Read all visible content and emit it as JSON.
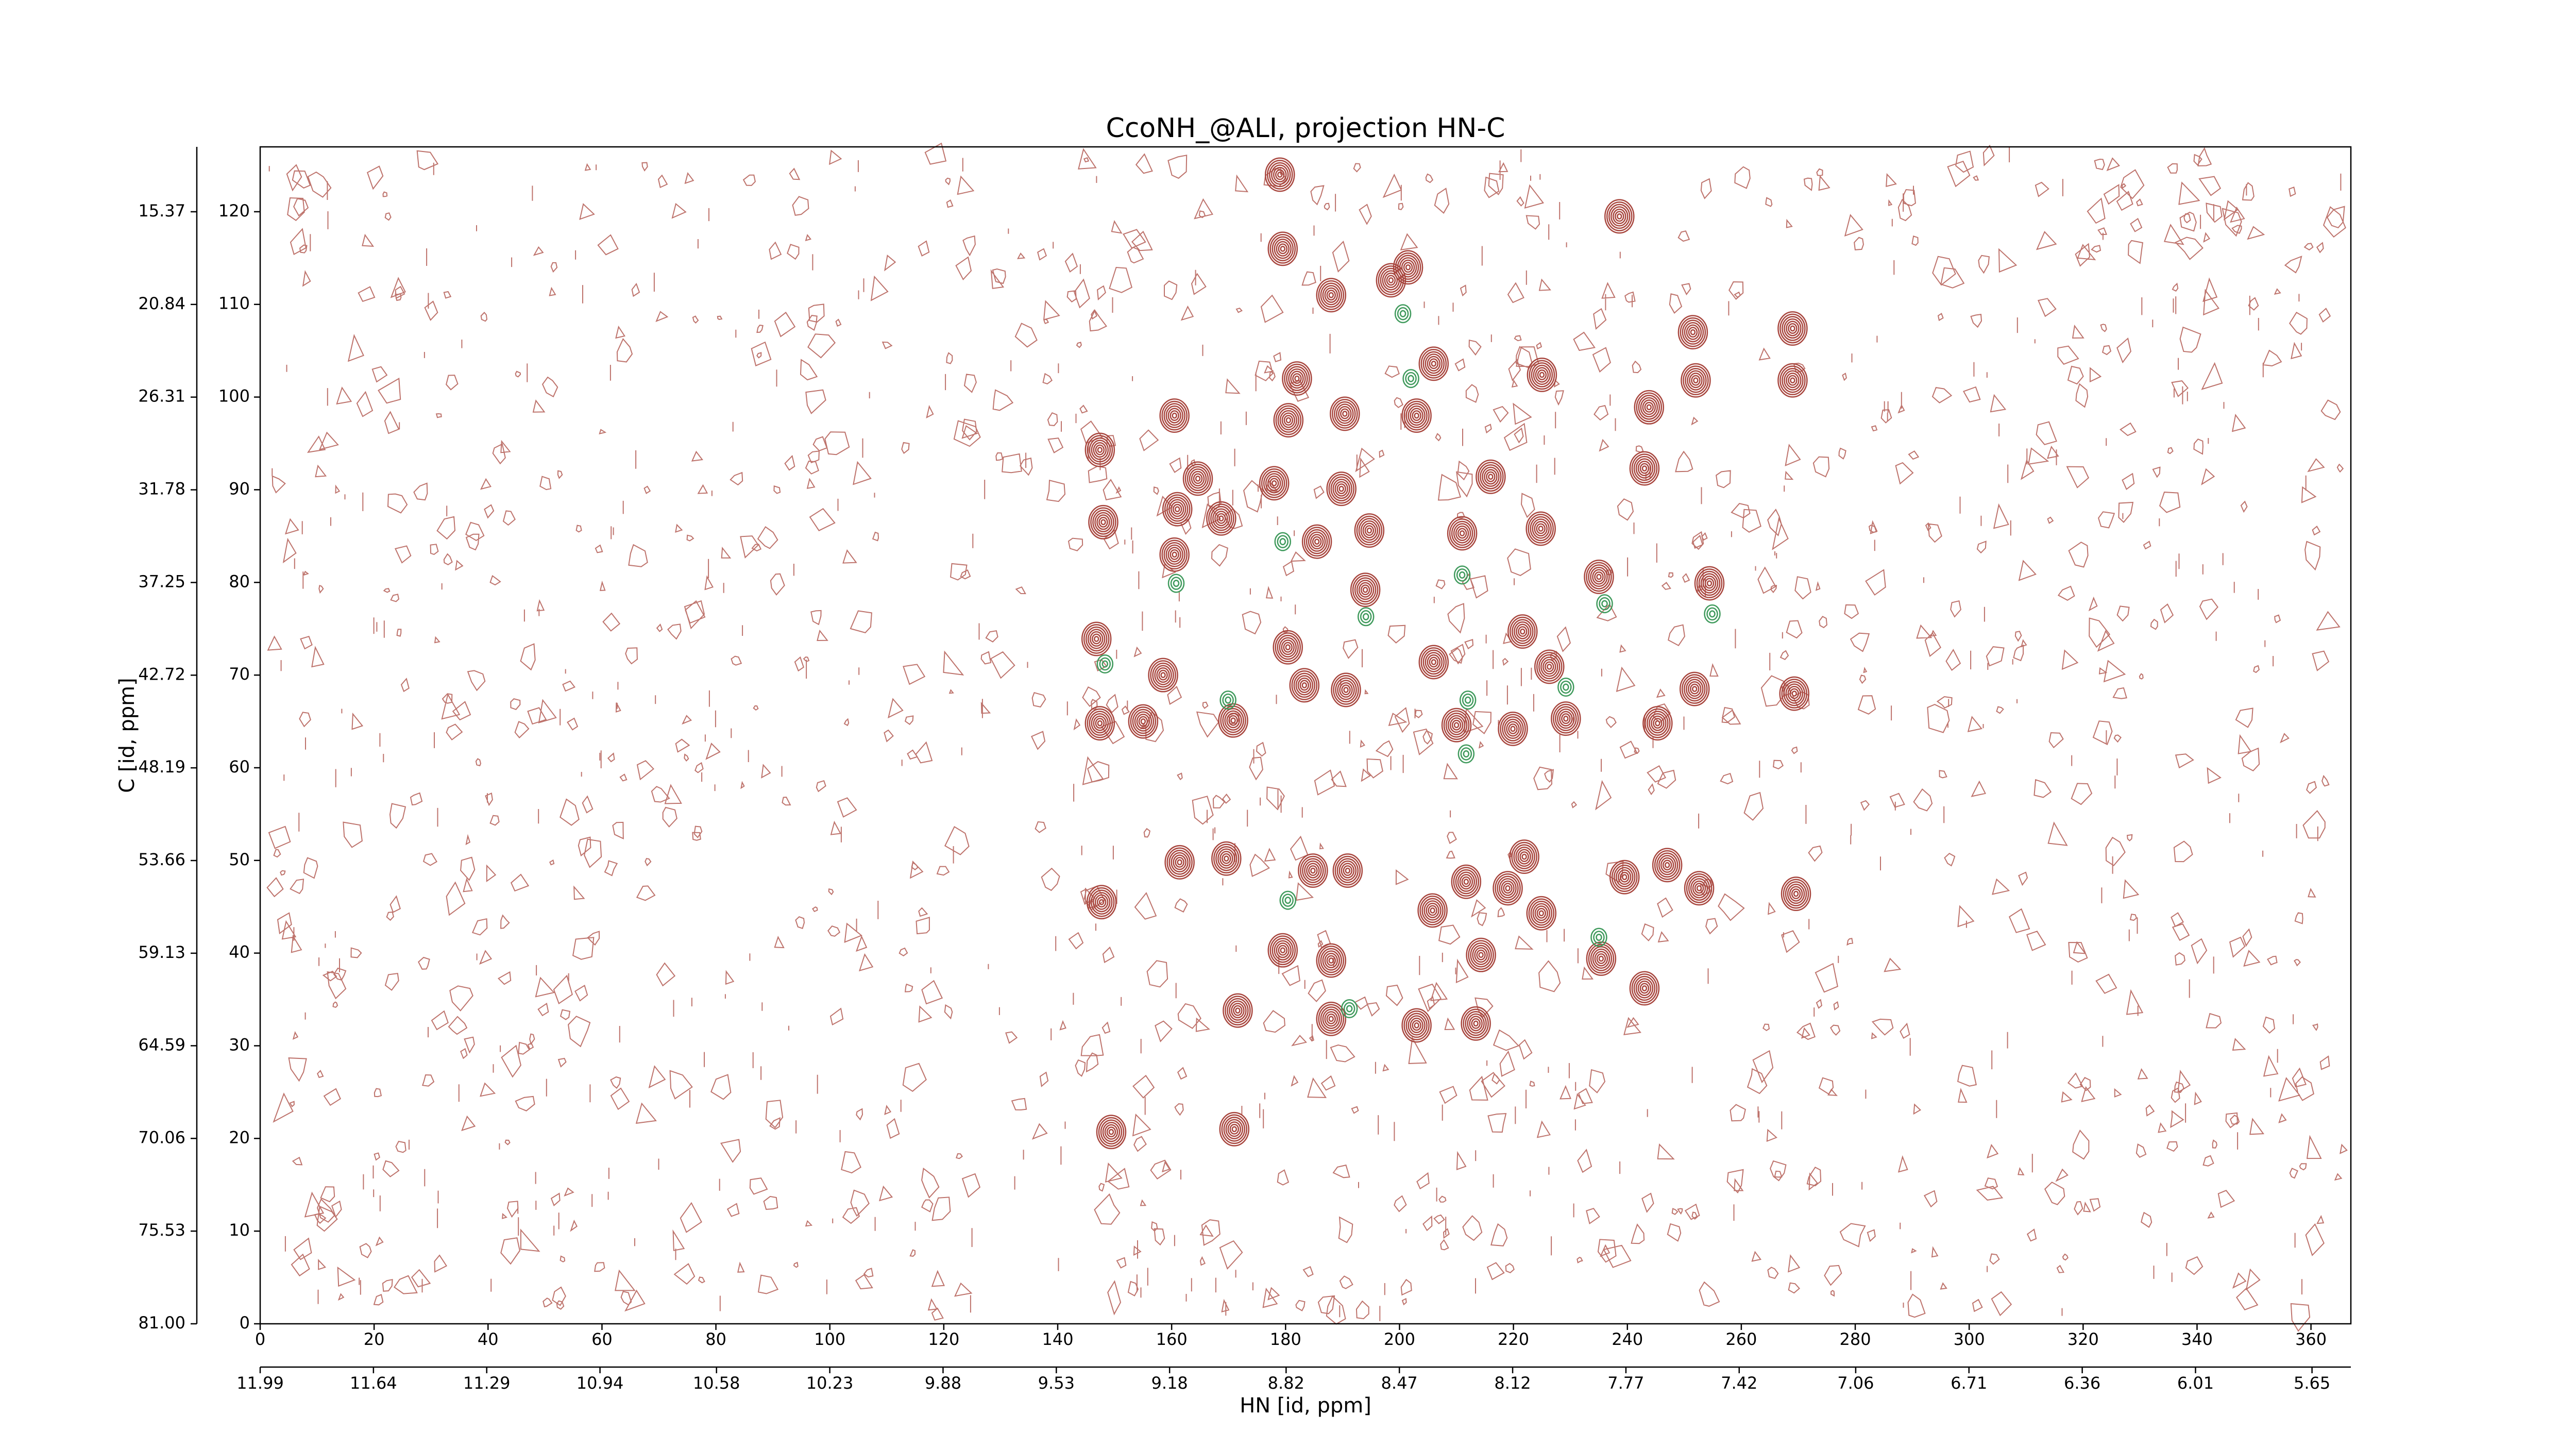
{
  "chart_data": {
    "type": "contour",
    "title": "CcoNH_@ALI, projection HN-C",
    "xlabel": "HN [id, ppm]",
    "ylabel": "C [id, ppm]",
    "xlim": [
      0,
      367
    ],
    "ylim": [
      0,
      127
    ],
    "xticks": [
      0,
      20,
      40,
      60,
      80,
      100,
      120,
      140,
      160,
      180,
      200,
      220,
      240,
      260,
      280,
      300,
      320,
      340,
      360
    ],
    "yticks": [
      0,
      10,
      20,
      30,
      40,
      50,
      60,
      70,
      80,
      90,
      100,
      110,
      120
    ],
    "x2lim": [
      11.99,
      5.53
    ],
    "x2ticks": [
      11.99,
      11.64,
      11.29,
      10.94,
      10.58,
      10.23,
      9.88,
      9.53,
      9.18,
      8.82,
      8.47,
      8.12,
      7.77,
      7.42,
      7.06,
      6.71,
      6.36,
      6.01,
      5.65
    ],
    "y2lim": [
      81,
      11.54
    ],
    "y2ticks": [
      {
        "value": 81,
        "label": "81.00"
      },
      75.53,
      70.06,
      64.59,
      59.13,
      53.66,
      48.19,
      42.72,
      37.25,
      31.78,
      26.31,
      20.84,
      15.37
    ],
    "series": [
      {
        "color": "#a8463e",
        "x": [
          179,
          238.6,
          179.5,
          188,
          198.5,
          201.5,
          206,
          225,
          269,
          269,
          160.5,
          147.4,
          182,
          180.5,
          190.4,
          203,
          243.8,
          252,
          251.5,
          164.6,
          178,
          189.8,
          216,
          243,
          148,
          160.5,
          168.7,
          185.5,
          194.7,
          211,
          224.8,
          161,
          194,
          235,
          254.4,
          146.8,
          158.5,
          180.4,
          183.3,
          190.6,
          206,
          221.6,
          226.3,
          147.4,
          155,
          170.8,
          210,
          219.9,
          229.2,
          245.3,
          251.8,
          269.3,
          161.4,
          169.6,
          184.8,
          190.9,
          211.7,
          221.9,
          219,
          224.9,
          239.5,
          247,
          252.6,
          269.6,
          147.7,
          205.8,
          179.5,
          188,
          214.3,
          235.4,
          171.6,
          188,
          203,
          213.4,
          243,
          149.4,
          171
        ],
        "y": [
          124,
          119.5,
          116,
          111,
          112.6,
          114,
          103.6,
          102.4,
          107.4,
          101.8,
          98,
          94.3,
          102,
          97.5,
          98.2,
          98,
          98.9,
          101.8,
          107,
          91.2,
          90.7,
          90.1,
          91.4,
          92.3,
          86.5,
          83,
          86.9,
          84.4,
          85.6,
          85.3,
          85.8,
          87.9,
          79.2,
          80.6,
          79.9,
          73.9,
          70,
          73,
          68.9,
          68.4,
          71.4,
          74.7,
          70.9,
          64.8,
          65,
          65.1,
          64.6,
          64.2,
          65.3,
          64.8,
          68.5,
          68,
          49.8,
          50.2,
          48.9,
          48.9,
          47.7,
          50.4,
          47,
          44.3,
          48.2,
          49.5,
          47,
          46.4,
          45.5,
          44.6,
          40.3,
          39.2,
          39.8,
          39.4,
          33.8,
          32.9,
          32.2,
          32.4,
          36.2,
          20.7,
          21
        ]
      },
      {
        "color": "#3f9a5c",
        "x": [
          200.6,
          202,
          179.5,
          160.8,
          194.1,
          211,
          254.9,
          236,
          169.9,
          229.2,
          211.7,
          180.4,
          235,
          191.2,
          212,
          148.3
        ],
        "y": [
          109,
          102,
          84.4,
          79.9,
          76.3,
          80.8,
          76.6,
          77.7,
          67.3,
          68.7,
          61.5,
          45.7,
          41.7,
          34,
          67.3,
          71.2
        ]
      }
    ]
  }
}
